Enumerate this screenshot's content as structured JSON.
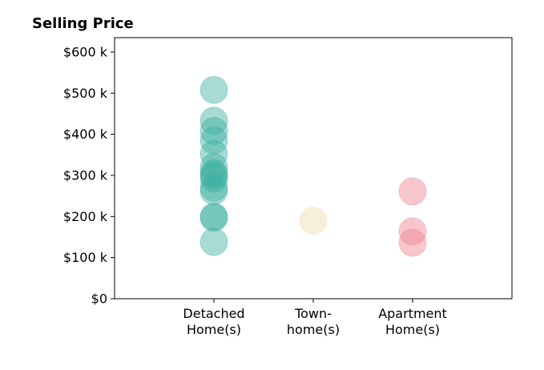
{
  "chart_data": {
    "type": "scatter",
    "title": "Selling Price",
    "xlabel": "",
    "ylabel": "",
    "categories": [
      [
        "Detached",
        "Home(s)"
      ],
      [
        "Town-",
        "home(s)"
      ],
      [
        "Apartment",
        "Home(s)"
      ]
    ],
    "xlim": [
      -1,
      3
    ],
    "ylim": [
      0,
      635000
    ],
    "yticks": [
      0,
      100000,
      200000,
      300000,
      400000,
      500000,
      600000
    ],
    "ytick_labels": [
      "$0",
      "$100 k",
      "$200 k",
      "$300 k",
      "$400 k",
      "$500 k",
      "$600 k"
    ],
    "grid": false,
    "series": [
      {
        "category_index": 0,
        "color": "#3bb0a0",
        "values": [
          508000,
          433000,
          408000,
          385000,
          352000,
          320000,
          305000,
          300000,
          292000,
          270000,
          262000,
          200000,
          197000,
          138000
        ]
      },
      {
        "category_index": 1,
        "color": "#f0dcac",
        "values": [
          190000
        ]
      },
      {
        "category_index": 2,
        "color": "#ef8090",
        "values": [
          261000,
          164000,
          136000
        ]
      }
    ]
  }
}
